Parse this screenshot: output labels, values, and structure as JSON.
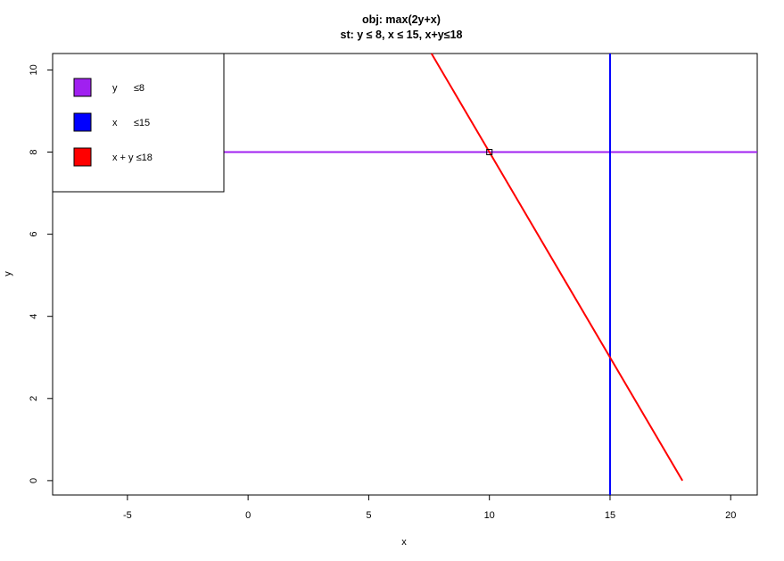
{
  "chart_data": {
    "type": "line",
    "title": "obj: max(2y+x)",
    "subtitle": "st: y ≤ 8, x ≤ 15, x+y≤18",
    "xlabel": "x",
    "ylabel": "y",
    "xlim": [
      -8.1,
      21.1
    ],
    "ylim": [
      -0.35,
      10.4
    ],
    "xticks": [
      -5,
      0,
      5,
      10,
      15,
      20
    ],
    "yticks": [
      0,
      2,
      4,
      6,
      8,
      10
    ],
    "grid": false,
    "legend_position": "top-left",
    "series": [
      {
        "name": "y      ≤8",
        "color": "#A020F0",
        "kind": "hline",
        "y": 8
      },
      {
        "name": "x      ≤15",
        "color": "#0000FF",
        "kind": "vline",
        "x": 15
      },
      {
        "name": "x + y ≤18",
        "color": "#FF0000",
        "kind": "segment",
        "x": [
          7.6,
          18
        ],
        "y": [
          10.4,
          0
        ]
      }
    ],
    "points": [
      {
        "x": 10,
        "y": 8,
        "marker": "open-square"
      }
    ]
  }
}
